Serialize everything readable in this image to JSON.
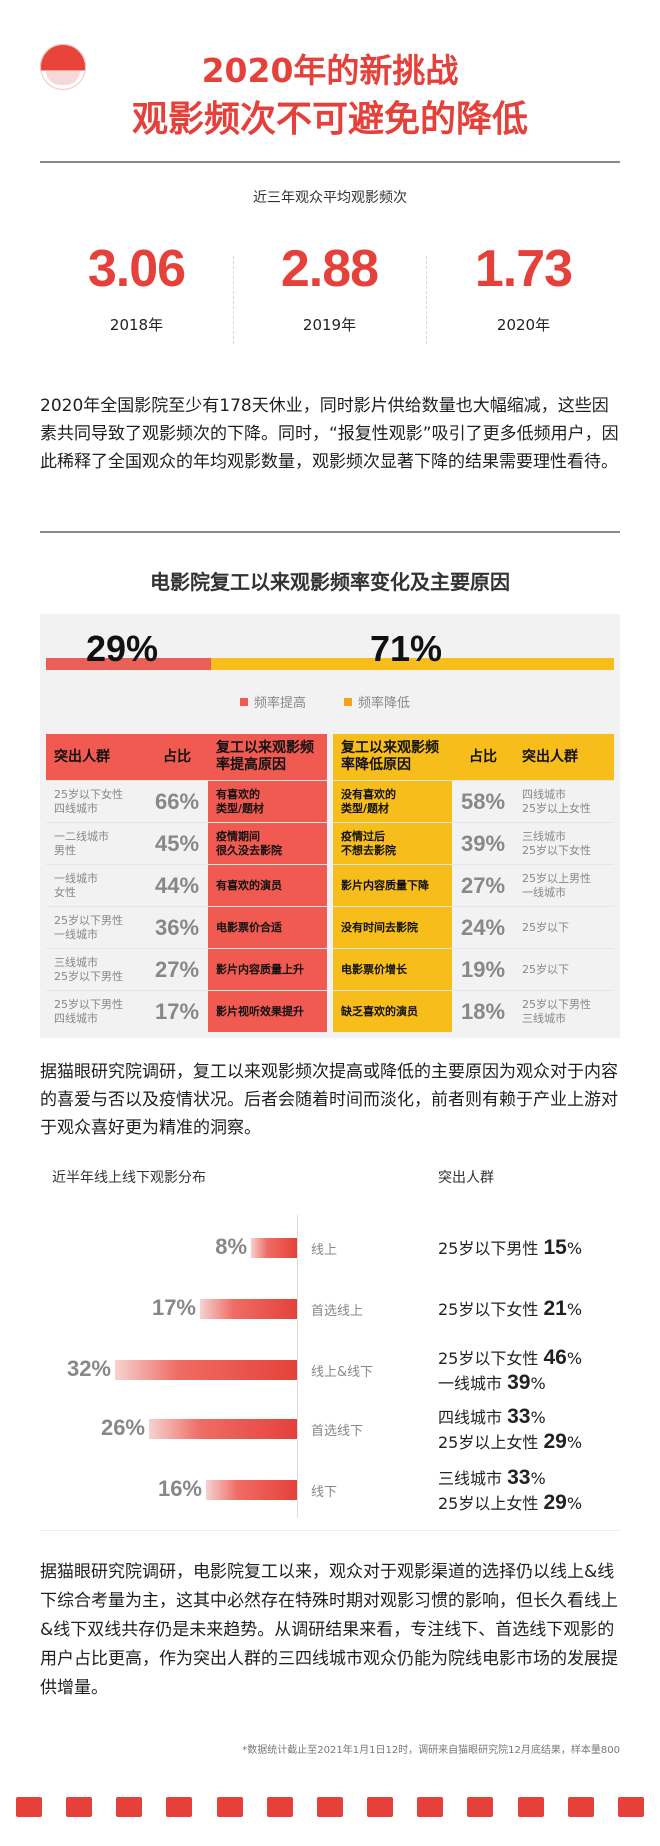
{
  "header": {
    "title_line1": "2020年的新挑战",
    "title_line2": "观影频次不可避免的降低"
  },
  "stats": {
    "caption": "近三年观众平均观影频次",
    "items": [
      {
        "value": "3.06",
        "year": "2018年"
      },
      {
        "value": "2.88",
        "year": "2019年"
      },
      {
        "value": "1.73",
        "year": "2020年"
      }
    ]
  },
  "chart_data": {
    "type": "bar",
    "categories": [
      "2018年",
      "2019年",
      "2020年"
    ],
    "values": [
      3.06,
      2.88,
      1.73
    ],
    "title": "近三年观众平均观影频次"
  },
  "intro_paragraph": "2020年全国影院至少有178天休业，同时影片供给数量也大幅缩减，这些因素共同导致了观影频次的下降。同时，“报复性观影”吸引了更多低频用户，因此稀释了全国观众的年均观影数量，观影频次显著下降的结果需要理性看待。",
  "freq_section": {
    "title": "电影院复工以来观影频率变化及主要原因",
    "up_pct": "29%",
    "down_pct": "71%",
    "up_fraction": 0.29,
    "legend_up": "频率提高",
    "legend_down": "频率降低",
    "color_up": "#f05a51",
    "color_down": "#f7be1b",
    "left_headers": {
      "group": "突出人群",
      "share": "占比",
      "reason": "复工以来观影频率提高原因"
    },
    "right_headers": {
      "reason": "复工以来观影频率降低原因",
      "share": "占比",
      "group": "突出人群"
    },
    "left_rows": [
      {
        "group": "25岁以下女性\n四线城市",
        "share": "66%",
        "reason": "有喜欢的\n类型/题材"
      },
      {
        "group": "一二线城市\n男性",
        "share": "45%",
        "reason": "疫情期间\n很久没去影院"
      },
      {
        "group": "一线城市\n女性",
        "share": "44%",
        "reason": "有喜欢的演员"
      },
      {
        "group": "25岁以下男性\n一线城市",
        "share": "36%",
        "reason": "电影票价合适"
      },
      {
        "group": "三线城市\n25岁以下男性",
        "share": "27%",
        "reason": "影片内容质量上升"
      },
      {
        "group": "25岁以下男性\n四线城市",
        "share": "17%",
        "reason": "影片视听效果提升"
      }
    ],
    "right_rows": [
      {
        "reason": "没有喜欢的\n类型/题材",
        "share": "58%",
        "group": "四线城市\n25岁以上女性"
      },
      {
        "reason": "疫情过后\n不想去影院",
        "share": "39%",
        "group": "三线城市\n25岁以下女性"
      },
      {
        "reason": "影片内容质量下降",
        "share": "27%",
        "group": "25岁以上男性\n一线城市"
      },
      {
        "reason": "没有时间去影院",
        "share": "24%",
        "group": "25岁以下"
      },
      {
        "reason": "电影票价增长",
        "share": "19%",
        "group": "25岁以下"
      },
      {
        "reason": "缺乏喜欢的演员",
        "share": "18%",
        "group": "25岁以下男性\n三线城市"
      }
    ]
  },
  "mid_paragraph": "据猫眼研究院调研，复工以来观影频次提高或降低的主要原因为观众对于内容的喜爱与否以及疫情状况。后者会随着时间而淡化，前者则有赖于产业上游对于观众喜好更为精准的洞察。",
  "distribution": {
    "header_left": "近半年线上线下观影分布",
    "header_right": "突出人群",
    "rows": [
      {
        "pct": "8%",
        "value": 8,
        "label": "线上",
        "groups": [
          {
            "name": "25岁以下男性 ",
            "val": "15",
            "unit": "%"
          }
        ]
      },
      {
        "pct": "17%",
        "value": 17,
        "label": "首选线上",
        "groups": [
          {
            "name": "25岁以下女性 ",
            "val": "21",
            "unit": "%"
          }
        ]
      },
      {
        "pct": "32%",
        "value": 32,
        "label": "线上&线下",
        "groups": [
          {
            "name": "25岁以下女性 ",
            "val": "46",
            "unit": "%"
          },
          {
            "name": "一线城市 ",
            "val": "39",
            "unit": "%"
          }
        ]
      },
      {
        "pct": "26%",
        "value": 26,
        "label": "首选线下",
        "groups": [
          {
            "name": "四线城市 ",
            "val": "33",
            "unit": "%"
          },
          {
            "name": "25岁以上女性 ",
            "val": "29",
            "unit": "%"
          }
        ]
      },
      {
        "pct": "16%",
        "value": 16,
        "label": "线下",
        "groups": [
          {
            "name": "三线城市 ",
            "val": "33",
            "unit": "%"
          },
          {
            "name": "25岁以上女性 ",
            "val": "29",
            "unit": "%"
          }
        ]
      }
    ]
  },
  "closing_paragraph": "据猫眼研究院调研，电影院复工以来，观众对于观影渠道的选择仍以线上&线下综合考量为主，这其中必然存在特殊时期对观影习惯的影响，但长久看线上&线下双线共存仍是未来趋势。从调研结果来看，专注线下、首选线下观影的用户占比更高，作为突出人群的三四线城市观众仍能为院线电影市场的发展提供增量。",
  "footnote": "*数据统计截止至2021年1月1日12时，调研来自猫眼研究院12月底结果，样本量800",
  "accent_color": "#e5413a"
}
